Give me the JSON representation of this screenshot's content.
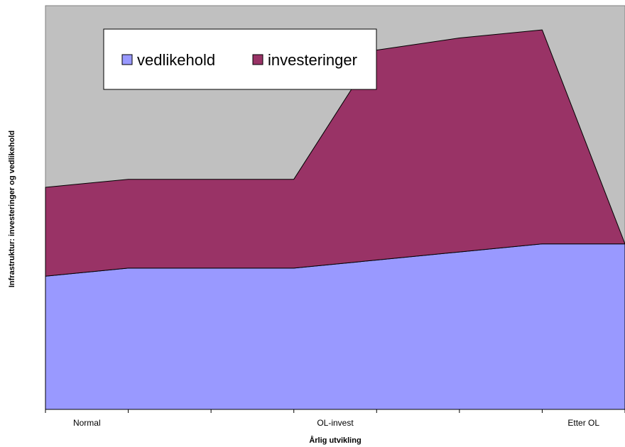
{
  "chart_data": {
    "type": "area",
    "stacked": true,
    "categories": [
      "Normal",
      "OL-invest",
      "Etter OL"
    ],
    "x": [
      0,
      1,
      2,
      3,
      4,
      5,
      6,
      7
    ],
    "x_tick_labels": [
      {
        "x": 0.5,
        "label": "Normal"
      },
      {
        "x": 3.5,
        "label": "OL-invest"
      },
      {
        "x": 6.5,
        "label": "Etter OL"
      }
    ],
    "series": [
      {
        "name": "vedlikehold",
        "color": "#9999FF",
        "values": [
          33,
          35,
          35,
          35,
          37,
          39,
          41,
          41
        ]
      },
      {
        "name": "investeringer",
        "color": "#993366",
        "values": [
          22,
          22,
          22,
          22,
          52,
          53,
          53,
          0
        ]
      }
    ],
    "xlabel": "Årlig utvikling",
    "ylabel": "Infrastruktur: investeringer og vedlikehold",
    "ylim": [
      0,
      100
    ],
    "grid": false,
    "plot_background": "#C0C0C0",
    "legend": {
      "placement": "top-left",
      "entries": [
        "vedlikehold",
        "investeringer"
      ]
    }
  }
}
